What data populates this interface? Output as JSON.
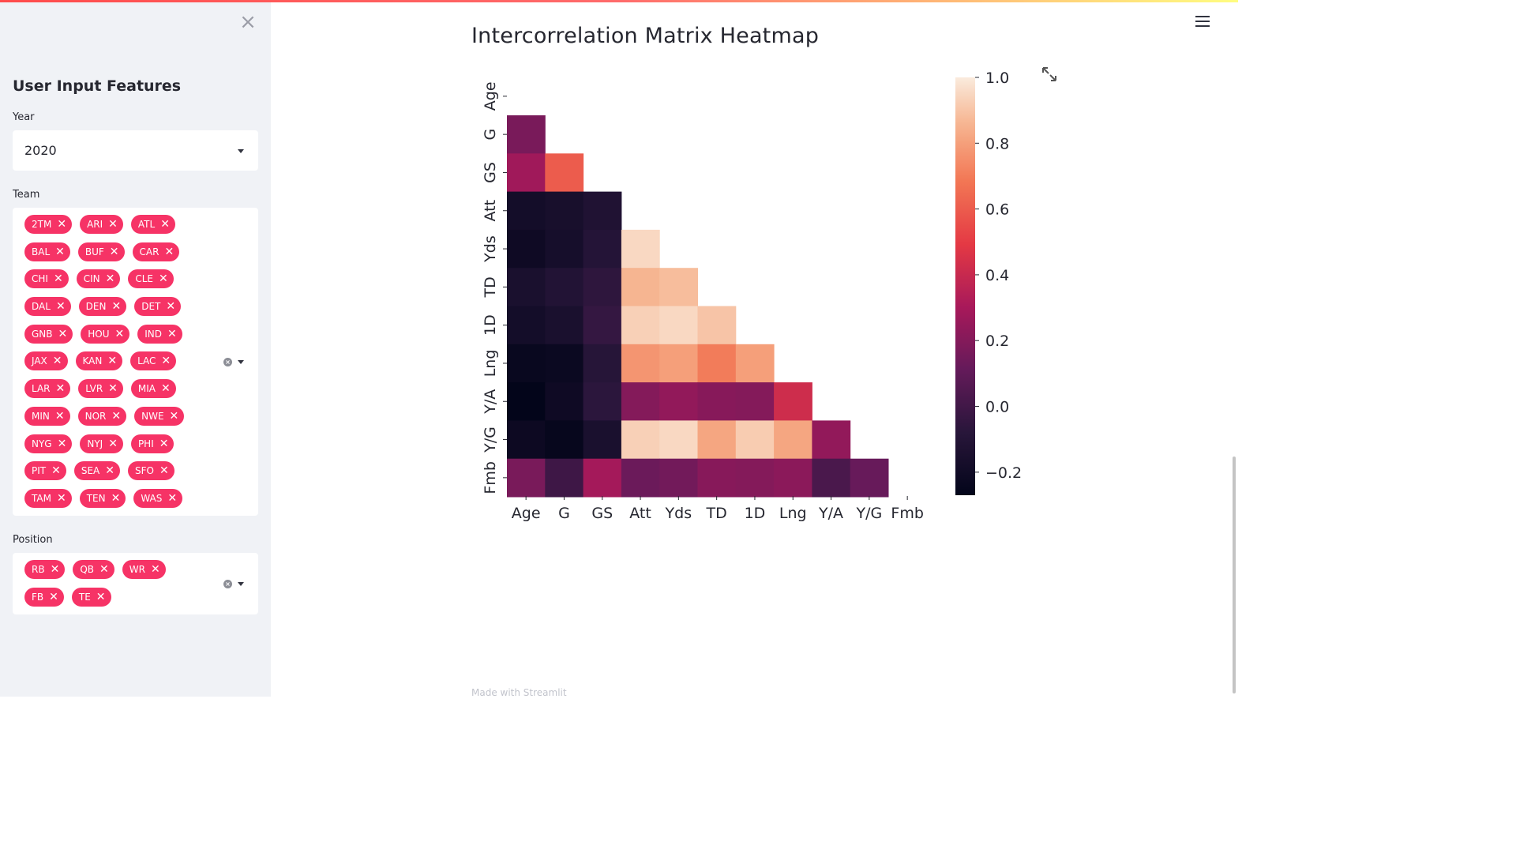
{
  "sidebar": {
    "title": "User Input Features",
    "year": {
      "label": "Year",
      "value": "2020"
    },
    "team": {
      "label": "Team",
      "rows": [
        [
          "2TM",
          "ARI",
          "ATL"
        ],
        [
          "BAL",
          "BUF",
          "CAR"
        ],
        [
          "CHI",
          "CIN",
          "CLE"
        ],
        [
          "DAL",
          "DEN",
          "DET"
        ],
        [
          "GNB",
          "HOU",
          "IND"
        ],
        [
          "JAX",
          "KAN",
          "LAC"
        ],
        [
          "LAR",
          "LVR",
          "MIA"
        ],
        [
          "MIN",
          "NOR",
          "NWE"
        ],
        [
          "NYG",
          "NYJ",
          "PHI"
        ],
        [
          "PIT",
          "SEA",
          "SFO"
        ],
        [
          "TAM",
          "TEN",
          "WAS"
        ]
      ]
    },
    "position": {
      "label": "Position",
      "rows": [
        [
          "RB",
          "QB",
          "WR"
        ],
        [
          "FB",
          "TE"
        ]
      ]
    }
  },
  "main": {
    "title": "Intercorrelation Matrix Heatmap",
    "footer": "Made with Streamlit"
  },
  "chart_data": {
    "type": "heatmap",
    "variables": [
      "Age",
      "G",
      "GS",
      "Att",
      "Yds",
      "TD",
      "1D",
      "Lng",
      "Y/A",
      "Y/G",
      "Fmb"
    ],
    "mask": "upper-triangle",
    "colorbar": {
      "min": -0.27,
      "max": 1.0,
      "ticks": [
        1.0,
        0.8,
        0.6,
        0.4,
        0.2,
        0.0,
        -0.2
      ],
      "tick_labels": [
        "1.0",
        "0.8",
        "0.6",
        "0.4",
        "0.2",
        "0.0",
        "−0.2"
      ]
    },
    "colormap": "rocket",
    "rows": [
      {
        "name": "G",
        "values": [
          0.17
        ]
      },
      {
        "name": "GS",
        "values": [
          0.28,
          0.6
        ]
      },
      {
        "name": "Att",
        "values": [
          -0.18,
          -0.16,
          -0.12
        ]
      },
      {
        "name": "Yds",
        "values": [
          -0.21,
          -0.17,
          -0.1,
          0.95
        ]
      },
      {
        "name": "TD",
        "values": [
          -0.15,
          -0.11,
          -0.06,
          0.86,
          0.88
        ]
      },
      {
        "name": "1D",
        "values": [
          -0.18,
          -0.15,
          -0.04,
          0.93,
          0.95,
          0.9
        ]
      },
      {
        "name": "Lng",
        "values": [
          -0.24,
          -0.23,
          -0.09,
          0.77,
          0.8,
          0.7,
          0.8
        ]
      },
      {
        "name": "Y/A",
        "values": [
          -0.27,
          -0.21,
          -0.07,
          0.2,
          0.24,
          0.21,
          0.2,
          0.42
        ]
      },
      {
        "name": "Y/G",
        "values": [
          -0.22,
          -0.25,
          -0.15,
          0.93,
          0.95,
          0.82,
          0.92,
          0.82,
          0.24
        ]
      },
      {
        "name": "Fmb",
        "values": [
          0.17,
          -0.01,
          0.29,
          0.13,
          0.15,
          0.21,
          0.2,
          0.22,
          0.03,
          0.12
        ]
      }
    ]
  }
}
